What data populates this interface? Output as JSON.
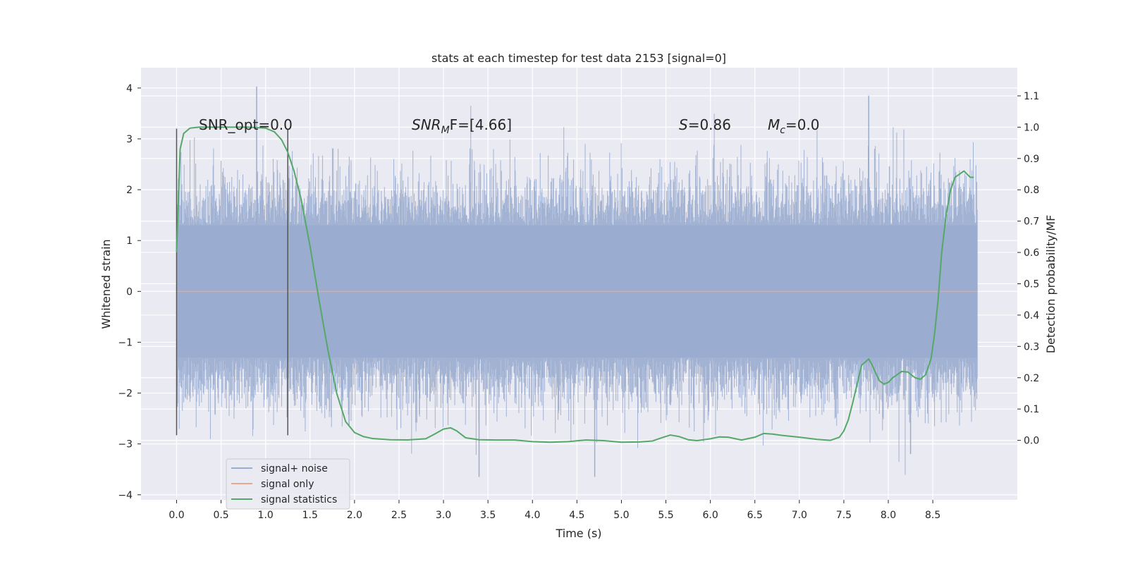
{
  "chart_data": {
    "type": "line",
    "title": "stats at each timestep for test data 2153 [signal=0]",
    "xlabel": "Time (s)",
    "ylabel": "Whitened strain",
    "y2label": "Detection probability/MF",
    "xlim": [
      -0.4,
      9.45
    ],
    "ylim": [
      -4.1,
      4.4
    ],
    "y2lim": [
      -0.19,
      1.19
    ],
    "xticks": [
      0.0,
      0.5,
      1.0,
      1.5,
      2.0,
      2.5,
      3.0,
      3.5,
      4.0,
      4.5,
      5.0,
      5.5,
      6.0,
      6.5,
      7.0,
      7.5,
      8.0,
      8.5
    ],
    "xtick_labels": [
      "0.0",
      "0.5",
      "1.0",
      "1.5",
      "2.0",
      "2.5",
      "3.0",
      "3.5",
      "4.0",
      "4.5",
      "5.0",
      "5.5",
      "6.0",
      "6.5",
      "7.0",
      "7.5",
      "8.0",
      "8.5"
    ],
    "yticks": [
      4,
      3,
      2,
      1,
      0,
      -1,
      -2,
      -3,
      -4
    ],
    "ytick_labels": [
      "4",
      "3",
      "2",
      "1",
      "0",
      "−1",
      "−2",
      "−3",
      "−4"
    ],
    "y2ticks": [
      1.1,
      1.0,
      0.9,
      0.8,
      0.7,
      0.6,
      0.5,
      0.4,
      0.3,
      0.2,
      0.1,
      0.0
    ],
    "y2tick_labels": [
      "1.1",
      "1.0",
      "0.9",
      "0.8",
      "0.7",
      "0.6",
      "0.5",
      "0.4",
      "0.3",
      "0.2",
      "0.1",
      "0.0"
    ],
    "grid": true,
    "legend_position": "lower-left",
    "series": [
      {
        "name": "signal+ noise",
        "color": "#9AACCF",
        "kind": "noise",
        "x_range": [
          0.0,
          9.0
        ],
        "band": [
          -1.3,
          1.3
        ],
        "peak_max": 4.03,
        "peak_min": -3.65
      },
      {
        "name": "signal only",
        "color": "#E5A98F",
        "kind": "line",
        "x": [
          0.0,
          9.0
        ],
        "y": [
          0.0,
          0.0
        ]
      },
      {
        "name": "signal statistics",
        "color": "#55A868",
        "kind": "line",
        "axis": "right",
        "x": [
          0.0,
          0.04,
          0.08,
          0.15,
          0.25,
          0.4,
          0.6,
          0.8,
          1.0,
          1.1,
          1.18,
          1.25,
          1.32,
          1.4,
          1.5,
          1.6,
          1.7,
          1.8,
          1.9,
          2.0,
          2.1,
          2.2,
          2.4,
          2.6,
          2.8,
          2.9,
          3.0,
          3.08,
          3.15,
          3.25,
          3.4,
          3.6,
          3.8,
          4.0,
          4.2,
          4.4,
          4.6,
          4.8,
          5.0,
          5.2,
          5.35,
          5.45,
          5.55,
          5.65,
          5.75,
          5.85,
          6.0,
          6.1,
          6.2,
          6.35,
          6.5,
          6.6,
          6.7,
          6.8,
          7.0,
          7.2,
          7.35,
          7.45,
          7.5,
          7.55,
          7.6,
          7.65,
          7.7,
          7.78,
          7.82,
          7.85,
          7.9,
          7.95,
          8.0,
          8.05,
          8.1,
          8.15,
          8.22,
          8.3,
          8.36,
          8.42,
          8.48,
          8.52,
          8.56,
          8.6,
          8.65,
          8.7,
          8.75,
          8.8,
          8.85,
          8.92,
          8.96
        ],
        "y": [
          0.6,
          0.93,
          0.98,
          0.997,
          1.0,
          1.0,
          1.0,
          1.0,
          0.997,
          0.985,
          0.96,
          0.92,
          0.86,
          0.77,
          0.62,
          0.45,
          0.29,
          0.15,
          0.06,
          0.025,
          0.012,
          0.006,
          0.002,
          0.0015,
          0.005,
          0.02,
          0.036,
          0.04,
          0.03,
          0.008,
          0.002,
          0.001,
          0.001,
          -0.004,
          -0.006,
          -0.004,
          0.001,
          -0.001,
          -0.006,
          -0.005,
          -0.002,
          0.008,
          0.017,
          0.012,
          0.002,
          -0.001,
          0.005,
          0.011,
          0.01,
          0.001,
          0.01,
          0.022,
          0.02,
          0.016,
          0.01,
          0.003,
          0.0,
          0.01,
          0.03,
          0.065,
          0.12,
          0.18,
          0.24,
          0.26,
          0.24,
          0.22,
          0.19,
          0.18,
          0.185,
          0.2,
          0.21,
          0.22,
          0.218,
          0.2,
          0.195,
          0.21,
          0.26,
          0.34,
          0.45,
          0.6,
          0.72,
          0.8,
          0.84,
          0.85,
          0.86,
          0.84,
          0.84
        ]
      }
    ],
    "markers": [
      {
        "name": "start-marker",
        "x": 0.0,
        "y_top": 3.2,
        "y_bottom": -2.83
      },
      {
        "name": "end-marker",
        "x": 1.25,
        "y_top": 3.2,
        "y_bottom": -2.83
      }
    ],
    "annotations": [
      {
        "id": "snr-opt",
        "text": "SNR_opt=0.0"
      },
      {
        "id": "snr-mf",
        "text_main": "SNR",
        "text_sub": "M",
        "text_rest": "F=[4.66]"
      },
      {
        "id": "s-value",
        "text_main": "S",
        "text_rest": "=0.86"
      },
      {
        "id": "mc-value",
        "text_main": "M",
        "text_sub": "c",
        "text_rest": "=0.0"
      }
    ]
  }
}
